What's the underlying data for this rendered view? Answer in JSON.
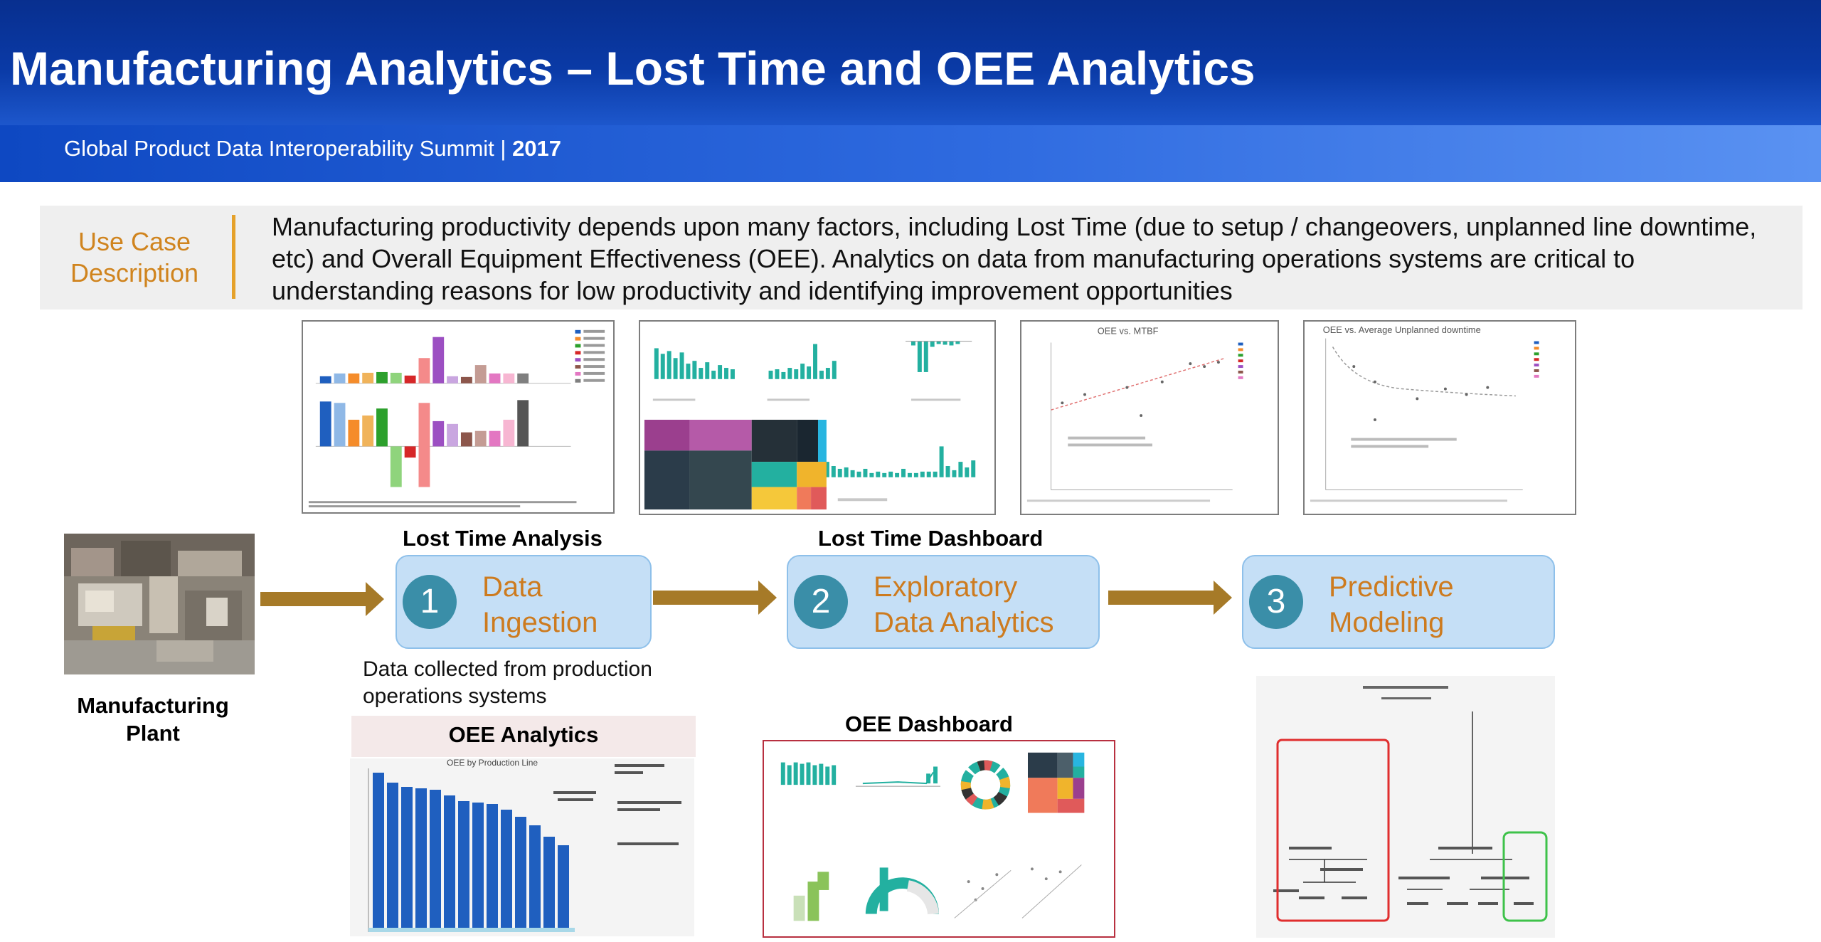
{
  "header": {
    "title": "Manufacturing Analytics – Lost Time and OEE Analytics",
    "subtitle": "Global Product Data Interoperability Summit | ",
    "subtitle_year": "2017"
  },
  "use_case": {
    "label_line1": "Use Case",
    "label_line2": "Description",
    "text": "Manufacturing productivity depends upon many factors, including Lost Time (due to setup / changeovers, unplanned line downtime, etc) and Overall Equipment Effectiveness (OEE). Analytics on data from manufacturing operations systems are critical to understanding reasons for low productivity and identifying improvement opportunities"
  },
  "thumbnails": {
    "lost_time_analysis_label": "Lost Time Analysis",
    "lost_time_dashboard_label": "Lost Time Dashboard",
    "oee_mtbf_title": "OEE vs. MTBF",
    "oee_downtime_title": "OEE vs. Average Unplanned downtime",
    "oee_dashboard_label": "OEE Dashboard",
    "oee_analytics_label": "OEE Analytics",
    "oee_by_line_title": "OEE by Production Line"
  },
  "plant": {
    "label_line1": "Manufacturing",
    "label_line2": "Plant"
  },
  "steps": [
    {
      "number": "1",
      "line1": "Data",
      "line2": "Ingestion"
    },
    {
      "number": "2",
      "line1": "Exploratory",
      "line2": "Data Analytics"
    },
    {
      "number": "3",
      "line1": "Predictive",
      "line2": "Modeling"
    }
  ],
  "collected_text": "Data collected from production operations systems",
  "colors": {
    "header_blue": "#0a3aa6",
    "step_fill": "#c5dff6",
    "step_text": "#cd7b1f",
    "circle": "#3a8ea8",
    "arrow": "#a67a28",
    "teal": "#23b0a0",
    "oee_bar": "#1f5fbf"
  }
}
